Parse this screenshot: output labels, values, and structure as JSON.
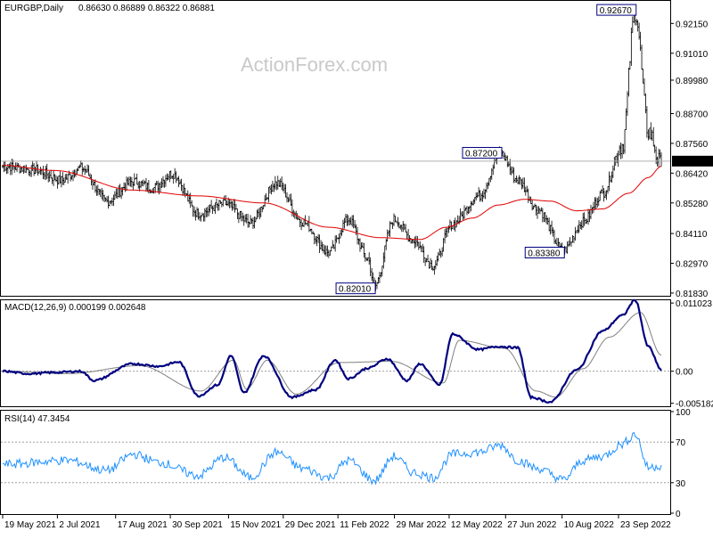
{
  "chart_data": {
    "type": "line",
    "symbol_label": "EURGBP,Daily",
    "ohlc_label": "0.86630 0.86889 0.86322 0.86881",
    "watermark": "ActionForex.com",
    "colors": {
      "price": "#000000",
      "ma": "#e00000",
      "macd": "#00007f",
      "signal": "#808080",
      "rsi": "#1e90ff",
      "grid": "#d9d9d9",
      "axis": "#000000",
      "current_bg": "#000000",
      "current_text": "#ffffff",
      "annotation_border": "#00007f"
    },
    "price_panel": {
      "ylim": [
        0.8176,
        0.9298
      ],
      "y_ticks": [
        "0.92150",
        "0.91010",
        "0.89980",
        "0.88700",
        "0.87560",
        "0.86420",
        "0.85280",
        "0.84110",
        "0.82970",
        "0.81830"
      ],
      "current_price": 0.86881,
      "current_label": "0.86881",
      "annotations": [
        {
          "label": "0.92670",
          "value": 0.9267,
          "index": 485,
          "side": "left"
        },
        {
          "label": "0.87200",
          "value": 0.872,
          "index": 382,
          "side": "left"
        },
        {
          "label": "0.83380",
          "value": 0.8338,
          "index": 430,
          "side": "left"
        },
        {
          "label": "0.82010",
          "value": 0.8201,
          "index": 285,
          "side": "left"
        }
      ],
      "price_anchors": [
        [
          0,
          0.8668
        ],
        [
          25,
          0.8655
        ],
        [
          45,
          0.8615
        ],
        [
          60,
          0.8662
        ],
        [
          80,
          0.8535
        ],
        [
          100,
          0.861
        ],
        [
          115,
          0.8585
        ],
        [
          130,
          0.864
        ],
        [
          150,
          0.8488
        ],
        [
          170,
          0.8525
        ],
        [
          190,
          0.8452
        ],
        [
          210,
          0.8605
        ],
        [
          230,
          0.8455
        ],
        [
          250,
          0.8338
        ],
        [
          265,
          0.8465
        ],
        [
          280,
          0.8315
        ],
        [
          285,
          0.8208
        ],
        [
          300,
          0.8465
        ],
        [
          315,
          0.8385
        ],
        [
          330,
          0.8288
        ],
        [
          345,
          0.8448
        ],
        [
          365,
          0.8555
        ],
        [
          382,
          0.8715
        ],
        [
          395,
          0.8615
        ],
        [
          410,
          0.8505
        ],
        [
          430,
          0.8345
        ],
        [
          445,
          0.8455
        ],
        [
          460,
          0.8565
        ],
        [
          475,
          0.875
        ],
        [
          485,
          0.9262
        ],
        [
          495,
          0.8805
        ],
        [
          505,
          0.867
        ]
      ],
      "ma_anchors": [
        [
          0,
          0.8672
        ],
        [
          40,
          0.8652
        ],
        [
          100,
          0.8577
        ],
        [
          150,
          0.8555
        ],
        [
          200,
          0.8528
        ],
        [
          250,
          0.8435
        ],
        [
          290,
          0.8395
        ],
        [
          320,
          0.8388
        ],
        [
          340,
          0.8435
        ],
        [
          360,
          0.847
        ],
        [
          380,
          0.852
        ],
        [
          400,
          0.8542
        ],
        [
          420,
          0.8535
        ],
        [
          440,
          0.8498
        ],
        [
          460,
          0.8505
        ],
        [
          480,
          0.8565
        ],
        [
          495,
          0.8625
        ],
        [
          505,
          0.8668
        ]
      ]
    },
    "macd_panel": {
      "label": "MACD(12,26,9) 0.000199 0.002648",
      "ylim": [
        -0.00552,
        0.01133
      ],
      "y_ticks": [
        "0.011023",
        "0.00",
        "-0.005182"
      ],
      "levels": [
        0.0
      ],
      "macd_anchors": [
        [
          0,
          0.0
        ],
        [
          20,
          -0.0004
        ],
        [
          40,
          -0.0002
        ],
        [
          60,
          0.0
        ],
        [
          70,
          -0.0015
        ],
        [
          100,
          0.0012
        ],
        [
          120,
          0.0008
        ],
        [
          135,
          0.0015
        ],
        [
          150,
          -0.004
        ],
        [
          165,
          -0.0022
        ],
        [
          175,
          0.0025
        ],
        [
          185,
          -0.0035
        ],
        [
          200,
          0.0025
        ],
        [
          222,
          -0.0042
        ],
        [
          240,
          -0.003
        ],
        [
          255,
          0.0018
        ],
        [
          265,
          -0.0012
        ],
        [
          280,
          0.0005
        ],
        [
          295,
          0.002
        ],
        [
          310,
          -0.0015
        ],
        [
          320,
          0.0012
        ],
        [
          335,
          -0.0022
        ],
        [
          345,
          0.006
        ],
        [
          365,
          0.0035
        ],
        [
          380,
          0.004
        ],
        [
          395,
          0.0038
        ],
        [
          405,
          -0.0042
        ],
        [
          420,
          -0.005
        ],
        [
          440,
          0.0002
        ],
        [
          460,
          0.0065
        ],
        [
          475,
          0.009
        ],
        [
          485,
          0.0115
        ],
        [
          495,
          0.004
        ],
        [
          505,
          0.0002
        ]
      ],
      "signal_anchors": [
        [
          0,
          0.0
        ],
        [
          50,
          -0.0004
        ],
        [
          105,
          0.0009
        ],
        [
          152,
          -0.0032
        ],
        [
          177,
          0.0018
        ],
        [
          187,
          -0.0029
        ],
        [
          203,
          0.0018
        ],
        [
          225,
          -0.0037
        ],
        [
          258,
          0.0014
        ],
        [
          298,
          0.0016
        ],
        [
          338,
          -0.0019
        ],
        [
          350,
          0.005
        ],
        [
          385,
          0.0037
        ],
        [
          409,
          -0.0032
        ],
        [
          424,
          -0.0042
        ],
        [
          445,
          0.0004
        ],
        [
          465,
          0.0055
        ],
        [
          489,
          0.0095
        ],
        [
          505,
          0.0026
        ]
      ]
    },
    "rsi_panel": {
      "label": "RSI(14) 47.3454",
      "ylim": [
        0,
        100
      ],
      "y_ticks": [
        "100",
        "70",
        "30",
        "0"
      ],
      "levels": [
        70,
        30
      ],
      "rsi_anchors": [
        [
          0,
          48
        ],
        [
          50,
          52
        ],
        [
          80,
          42
        ],
        [
          100,
          58
        ],
        [
          120,
          50
        ],
        [
          150,
          37
        ],
        [
          170,
          55
        ],
        [
          190,
          35
        ],
        [
          210,
          60
        ],
        [
          230,
          44
        ],
        [
          250,
          35
        ],
        [
          265,
          52
        ],
        [
          285,
          32
        ],
        [
          300,
          56
        ],
        [
          315,
          40
        ],
        [
          330,
          35
        ],
        [
          345,
          58
        ],
        [
          365,
          60
        ],
        [
          382,
          67
        ],
        [
          395,
          52
        ],
        [
          410,
          44
        ],
        [
          430,
          33
        ],
        [
          445,
          52
        ],
        [
          460,
          56
        ],
        [
          475,
          68
        ],
        [
          485,
          78
        ],
        [
          495,
          45
        ],
        [
          505,
          47
        ]
      ]
    },
    "x_axis": {
      "count": 506,
      "ticks": [
        {
          "label": "19 May 2021",
          "index": 0
        },
        {
          "label": "2 Jul 2021",
          "index": 31
        },
        {
          "label": "17 Aug 2021",
          "index": 64
        },
        {
          "label": "30 Sep 2021",
          "index": 95
        },
        {
          "label": "15 Nov 2021",
          "index": 128
        },
        {
          "label": "29 Dec 2021",
          "index": 159
        },
        {
          "label": "11 Feb 2022",
          "index": 190
        },
        {
          "label": "29 Mar 2022",
          "index": 222
        },
        {
          "label": "12 May 2022",
          "index": 253
        },
        {
          "label": "27 Jun 2022",
          "index": 285
        },
        {
          "label": "10 Aug 2022",
          "index": 317
        },
        {
          "label": "23 Sep 2022",
          "index": 349
        }
      ]
    }
  }
}
